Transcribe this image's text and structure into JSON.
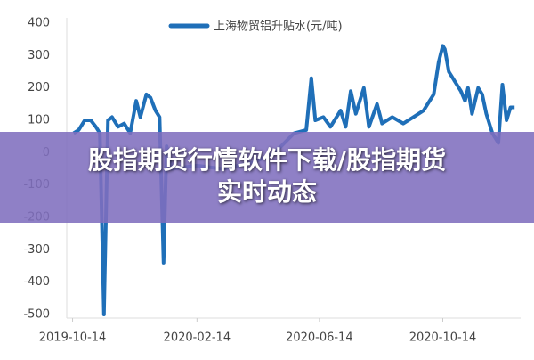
{
  "chart_data": {
    "type": "line",
    "x": [
      "2019-10-15",
      "2019-10-20",
      "2019-10-26",
      "2019-11-01",
      "2019-11-06",
      "2019-11-10",
      "2019-11-14",
      "2019-11-18",
      "2019-11-22",
      "2019-11-28",
      "2019-12-04",
      "2019-12-10",
      "2019-12-16",
      "2019-12-20",
      "2019-12-26",
      "2019-12-30",
      "2020-01-04",
      "2020-01-08",
      "2020-01-12",
      "2020-01-15",
      "2020-01-20",
      "2020-02-14",
      "2020-03-10",
      "2020-04-10",
      "2020-05-01",
      "2020-05-20",
      "2020-06-01",
      "2020-06-06",
      "2020-06-10",
      "2020-06-18",
      "2020-06-25",
      "2020-07-05",
      "2020-07-10",
      "2020-07-15",
      "2020-07-20",
      "2020-07-28",
      "2020-08-02",
      "2020-08-10",
      "2020-08-15",
      "2020-08-25",
      "2020-09-05",
      "2020-09-15",
      "2020-09-25",
      "2020-10-05",
      "2020-10-10",
      "2020-10-14",
      "2020-10-16",
      "2020-10-20",
      "2020-10-26",
      "2020-11-01",
      "2020-11-05",
      "2020-11-08",
      "2020-11-12",
      "2020-11-18",
      "2020-11-22",
      "2020-11-26",
      "2020-12-02",
      "2020-12-08",
      "2020-12-12",
      "2020-12-16",
      "2020-12-20",
      "2020-12-24"
    ],
    "series": [
      {
        "name": "上海物贸铝升贴水(元/吨)",
        "color": "#1f6fb8",
        "values": [
          60,
          70,
          100,
          100,
          80,
          60,
          -500,
          100,
          110,
          80,
          90,
          60,
          160,
          110,
          180,
          170,
          130,
          110,
          -340,
          20,
          -50,
          -40,
          -50,
          -30,
          0,
          60,
          70,
          230,
          100,
          110,
          80,
          130,
          80,
          190,
          120,
          200,
          80,
          150,
          90,
          110,
          90,
          110,
          130,
          180,
          280,
          330,
          320,
          250,
          220,
          190,
          160,
          200,
          120,
          200,
          180,
          120,
          60,
          30,
          210,
          100,
          140,
          140
        ]
      }
    ],
    "xlim": [
      "2019-10-10",
      "2020-12-30"
    ],
    "xticks": [
      "2019-10-14",
      "2020-02-14",
      "2020-06-14",
      "2020-10-14"
    ],
    "ylim": [
      -500,
      400
    ],
    "yticks": [
      -500,
      -400,
      -300,
      -200,
      -100,
      0,
      100,
      200,
      300,
      400
    ],
    "grid": false
  },
  "banner": {
    "text": "股指期货行情软件下载/股指期货实时动态"
  }
}
